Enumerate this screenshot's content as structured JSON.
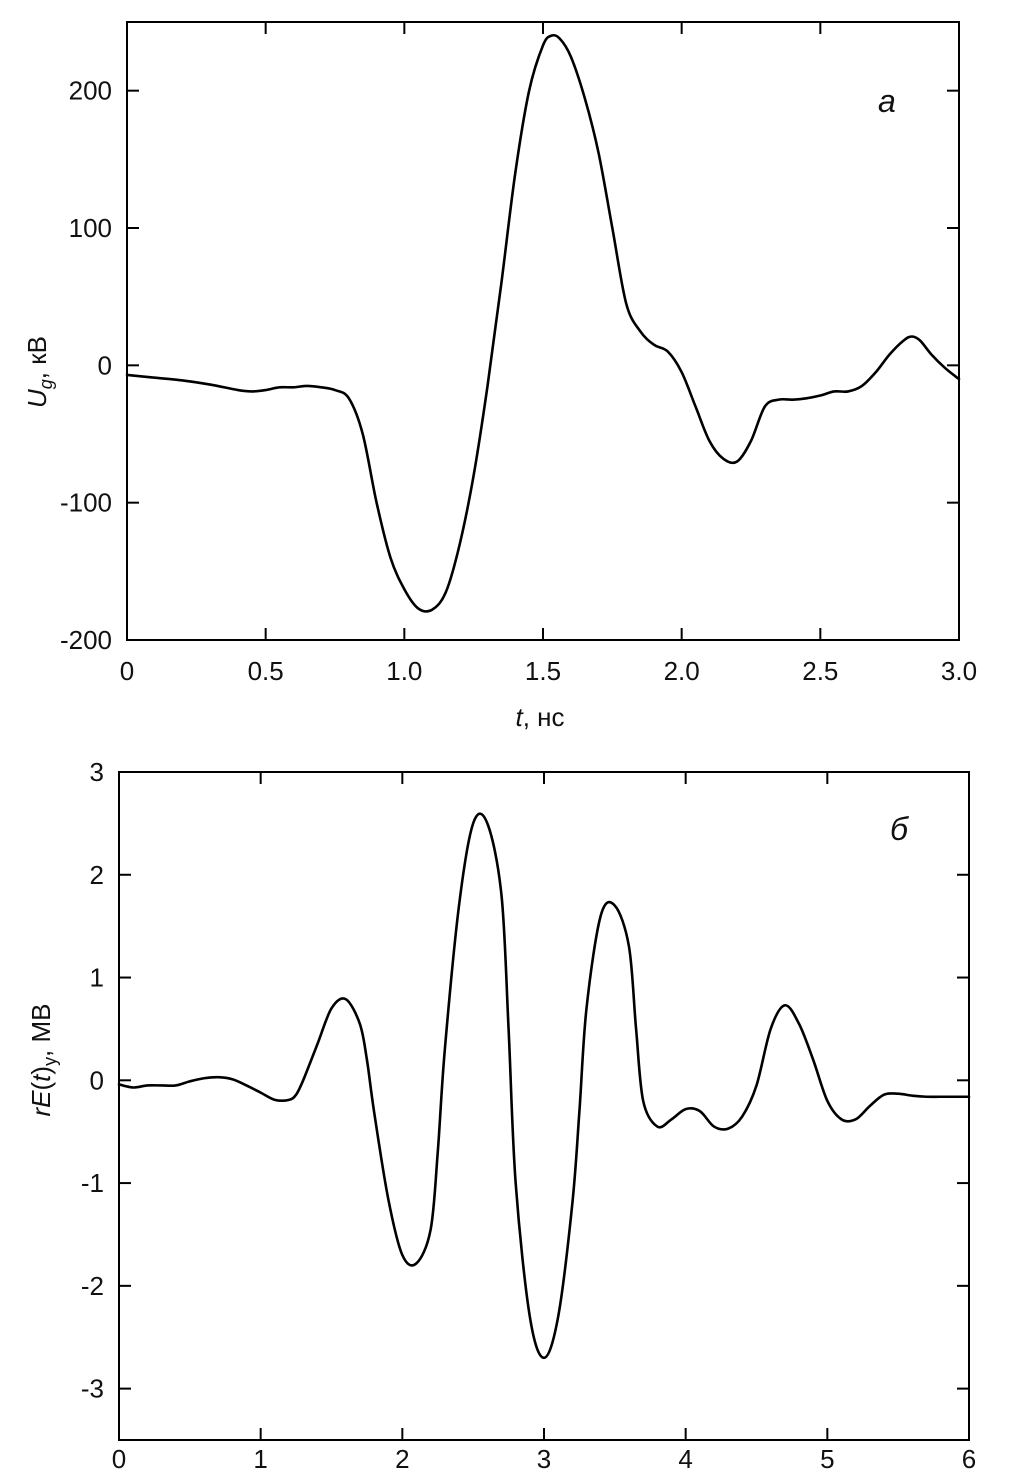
{
  "chart_data": [
    {
      "type": "line",
      "panel_label": "а",
      "xlabel_italic": "t",
      "xlabel_rest": ", нс",
      "ylabel_main": "U",
      "ylabel_sub": "g",
      "ylabel_rest": ", кВ",
      "xlim": [
        0,
        3.0
      ],
      "ylim": [
        -200,
        250
      ],
      "x_ticks": [
        0,
        0.5,
        1.0,
        1.5,
        2.0,
        2.5,
        3.0
      ],
      "x_tick_labels": [
        "0",
        "0.5",
        "1.0",
        "1.5",
        "2.0",
        "2.5",
        "3.0"
      ],
      "y_ticks": [
        -200,
        -100,
        0,
        100,
        200
      ],
      "y_tick_labels": [
        "-200",
        "-100",
        "0",
        "100",
        "200"
      ],
      "grid": false,
      "series": [
        {
          "x": [
            0,
            0.1,
            0.2,
            0.3,
            0.4,
            0.45,
            0.5,
            0.55,
            0.6,
            0.65,
            0.7,
            0.75,
            0.8,
            0.85,
            0.9,
            0.95,
            1.0,
            1.05,
            1.1,
            1.15,
            1.2,
            1.25,
            1.3,
            1.35,
            1.4,
            1.45,
            1.5,
            1.53,
            1.56,
            1.6,
            1.65,
            1.7,
            1.75,
            1.8,
            1.85,
            1.9,
            1.95,
            2.0,
            2.05,
            2.1,
            2.15,
            2.2,
            2.25,
            2.3,
            2.35,
            2.4,
            2.45,
            2.5,
            2.55,
            2.6,
            2.65,
            2.7,
            2.75,
            2.8,
            2.83,
            2.86,
            2.9,
            2.95,
            3.0
          ],
          "y": [
            -7,
            -9,
            -11,
            -14,
            -18,
            -19,
            -18,
            -16,
            -16,
            -15,
            -16,
            -18,
            -24,
            -50,
            -100,
            -140,
            -163,
            -177,
            -178,
            -165,
            -130,
            -80,
            -15,
            60,
            140,
            200,
            233,
            240,
            238,
            225,
            195,
            155,
            100,
            45,
            25,
            15,
            10,
            -5,
            -30,
            -55,
            -68,
            -70,
            -55,
            -30,
            -25,
            -25,
            -24,
            -22,
            -19,
            -19,
            -15,
            -5,
            8,
            18,
            21,
            18,
            8,
            -2,
            -10
          ]
        }
      ]
    },
    {
      "type": "line",
      "panel_label": "б",
      "ylabel_italic_r": "r",
      "ylabel_italic_E": "E",
      "ylabel_paren_open": "(",
      "ylabel_italic_t": "t",
      "ylabel_paren_close": ")",
      "ylabel_sub": "y",
      "ylabel_rest": ", МВ",
      "xlim": [
        0,
        6
      ],
      "ylim": [
        -3.5,
        3
      ],
      "x_ticks": [
        0,
        1,
        2,
        3,
        4,
        5,
        6
      ],
      "x_tick_labels": [
        "0",
        "1",
        "2",
        "3",
        "4",
        "5",
        "6"
      ],
      "y_ticks": [
        -3,
        -2,
        -1,
        0,
        1,
        2,
        3
      ],
      "y_tick_labels": [
        "-3",
        "-2",
        "-1",
        "0",
        "1",
        "2",
        "3"
      ],
      "grid": false,
      "series": [
        {
          "x": [
            0,
            0.1,
            0.2,
            0.3,
            0.4,
            0.5,
            0.6,
            0.7,
            0.8,
            0.9,
            1.0,
            1.1,
            1.2,
            1.25,
            1.3,
            1.4,
            1.5,
            1.6,
            1.7,
            1.75,
            1.8,
            1.9,
            2.0,
            2.1,
            2.2,
            2.25,
            2.3,
            2.4,
            2.5,
            2.6,
            2.7,
            2.75,
            2.8,
            2.9,
            3.0,
            3.1,
            3.2,
            3.25,
            3.3,
            3.4,
            3.5,
            3.6,
            3.65,
            3.7,
            3.8,
            3.9,
            4.0,
            4.1,
            4.2,
            4.3,
            4.4,
            4.5,
            4.6,
            4.7,
            4.8,
            4.9,
            5.0,
            5.1,
            5.2,
            5.3,
            5.4,
            5.5,
            5.6,
            5.7,
            5.8,
            5.9,
            6.0
          ],
          "y": [
            -0.04,
            -0.07,
            -0.05,
            -0.05,
            -0.05,
            -0.01,
            0.02,
            0.03,
            0.01,
            -0.05,
            -0.12,
            -0.19,
            -0.19,
            -0.14,
            0.0,
            0.35,
            0.7,
            0.79,
            0.55,
            0.2,
            -0.3,
            -1.15,
            -1.7,
            -1.78,
            -1.45,
            -0.7,
            0.3,
            1.7,
            2.5,
            2.5,
            1.8,
            0.5,
            -1.0,
            -2.3,
            -2.7,
            -2.3,
            -1.2,
            -0.3,
            0.7,
            1.6,
            1.7,
            1.3,
            0.5,
            -0.2,
            -0.45,
            -0.38,
            -0.28,
            -0.3,
            -0.45,
            -0.47,
            -0.35,
            -0.05,
            0.5,
            0.73,
            0.55,
            0.2,
            -0.2,
            -0.38,
            -0.38,
            -0.25,
            -0.14,
            -0.13,
            -0.15,
            -0.16,
            -0.16,
            -0.16,
            -0.16
          ]
        }
      ]
    }
  ]
}
